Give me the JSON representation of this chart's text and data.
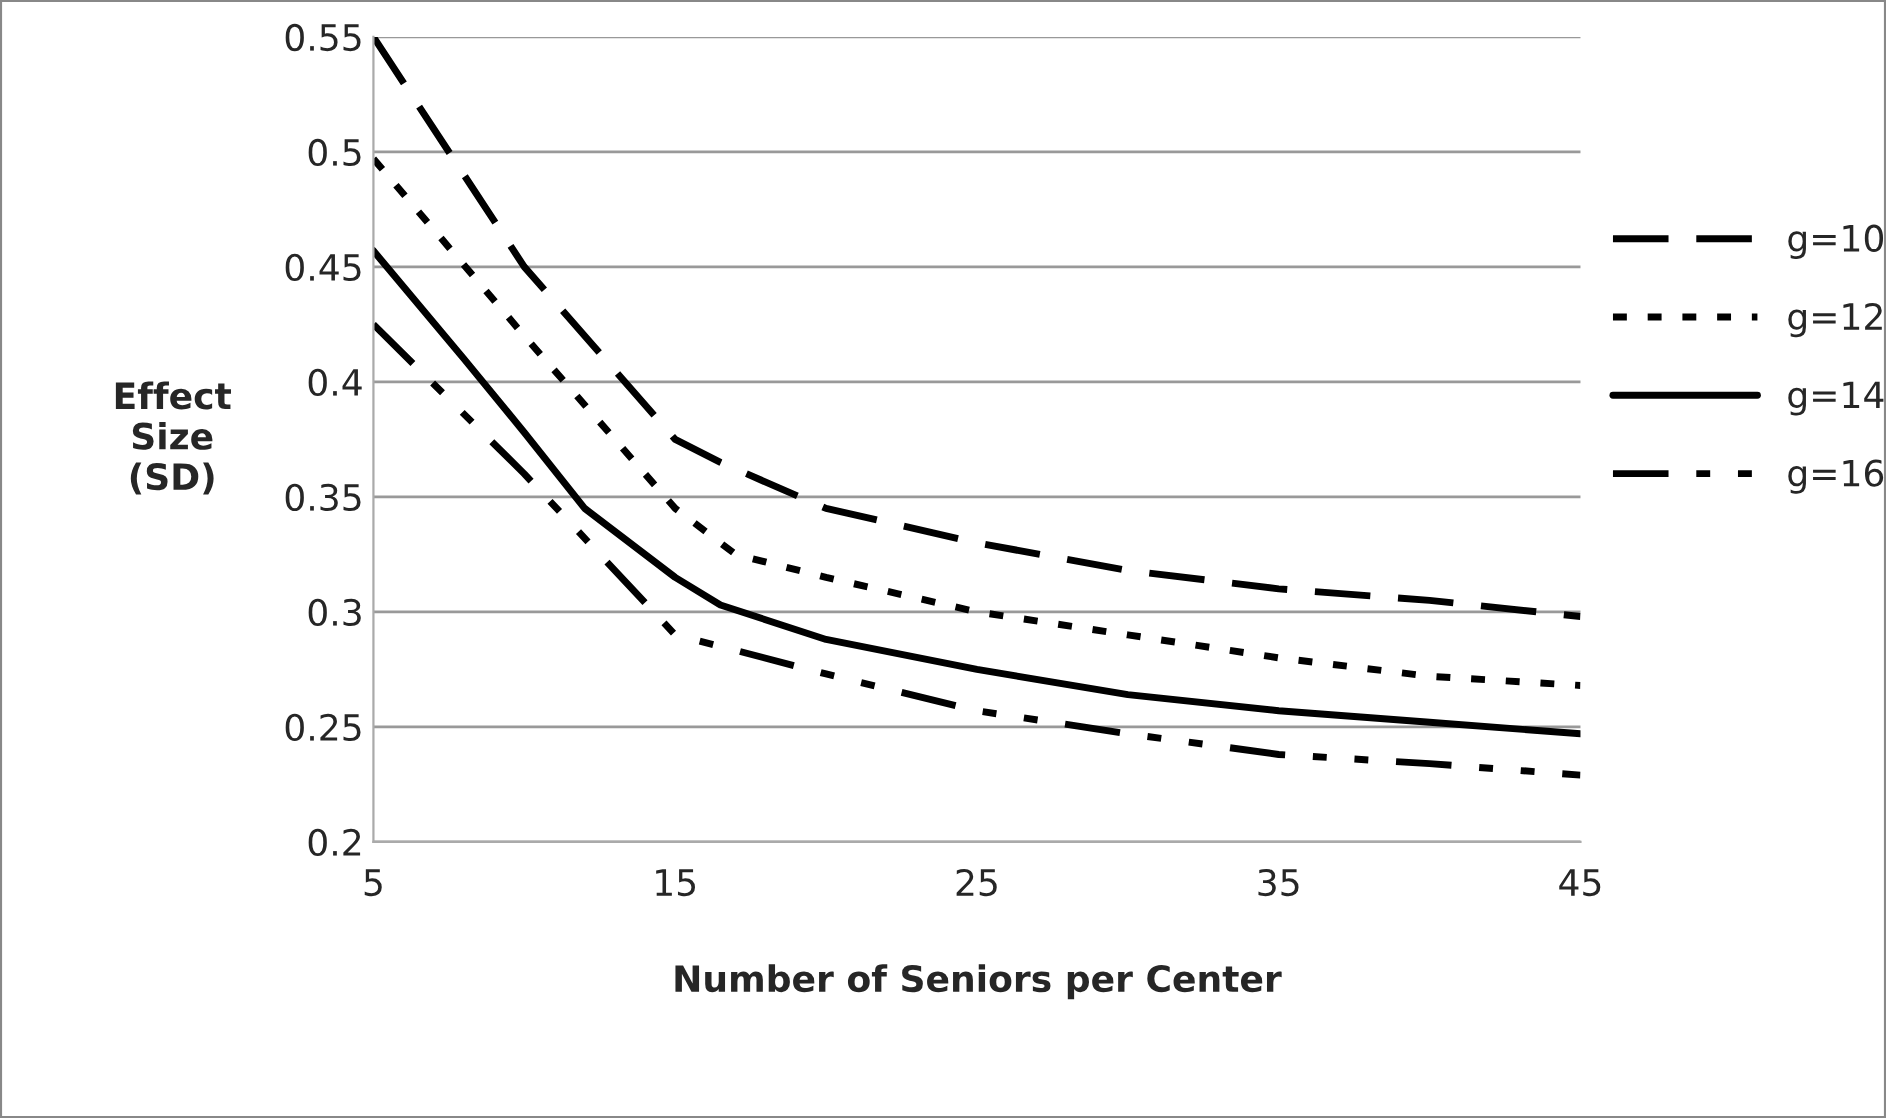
{
  "chart_data": {
    "type": "line",
    "xlabel": "Number of Seniors per Center",
    "ylabel": "Effect\nSize\n(SD)",
    "xlim": [
      5,
      45
    ],
    "xticks": [
      5,
      15,
      25,
      35,
      45
    ],
    "ylim": [
      0.2,
      0.55
    ],
    "yticks": [
      0.2,
      0.25,
      0.3,
      0.35,
      0.4,
      0.45,
      0.5,
      0.55
    ],
    "grid": "y",
    "legend": "right",
    "marker": "none",
    "series": [
      {
        "name": "g=10",
        "color": "#000000",
        "line_style": "dashed",
        "x": [
          5,
          10,
          15,
          16.5,
          20,
          25,
          30,
          35,
          40,
          45
        ],
        "values": [
          0.55,
          0.45,
          0.375,
          0.365,
          0.345,
          0.33,
          0.318,
          0.31,
          0.305,
          0.298
        ]
      },
      {
        "name": "g=12",
        "color": "#000000",
        "line_style": "dotted",
        "x": [
          5,
          10,
          15,
          17,
          20,
          25,
          30,
          35,
          40,
          45
        ],
        "values": [
          0.497,
          0.42,
          0.345,
          0.325,
          0.315,
          0.3,
          0.29,
          0.28,
          0.272,
          0.268
        ]
      },
      {
        "name": "g=14",
        "color": "#000000",
        "line_style": "solid",
        "x": [
          5,
          8,
          10,
          12,
          15,
          16.5,
          20,
          25,
          30,
          35,
          40,
          45
        ],
        "values": [
          0.457,
          0.41,
          0.378,
          0.345,
          0.315,
          0.303,
          0.288,
          0.275,
          0.264,
          0.257,
          0.252,
          0.247
        ]
      },
      {
        "name": "g=16",
        "color": "#000000",
        "line_style": "dashdot",
        "x": [
          5,
          10,
          15,
          16.5,
          20,
          25,
          30,
          35,
          40,
          45
        ],
        "values": [
          0.425,
          0.36,
          0.29,
          0.285,
          0.273,
          0.257,
          0.247,
          0.238,
          0.234,
          0.229
        ]
      }
    ]
  }
}
